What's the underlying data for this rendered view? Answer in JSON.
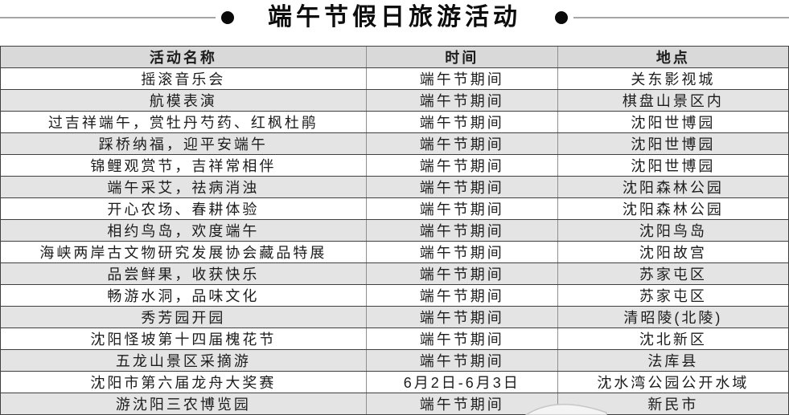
{
  "title": "端午节假日旅游活动",
  "decor": {
    "left_bullet": "",
    "right_bullet": ""
  },
  "colors": {
    "header_bg": "#d9d9d9",
    "alt_row_bg": "#e4e4e4",
    "border_dark": "#3f3f3f",
    "border_light": "#8f8f8f",
    "title_line": "#a6a6a6",
    "text": "#1c1c1c"
  },
  "table": {
    "columns": [
      "活动名称",
      "时间",
      "地点"
    ],
    "rows": [
      {
        "name": "摇滚音乐会",
        "time": "端午节期间",
        "place": "关东影视城"
      },
      {
        "name": "航模表演",
        "time": "端午节期间",
        "place": "棋盘山景区内"
      },
      {
        "name": "过吉祥端午，赏牡丹芍药、红枫杜鹃",
        "time": "端午节期间",
        "place": "沈阳世博园"
      },
      {
        "name": "踩桥纳福，迎平安端午",
        "time": "端午节期间",
        "place": "沈阳世博园"
      },
      {
        "name": "锦鲤观赏节，吉祥常相伴",
        "time": "端午节期间",
        "place": "沈阳世博园"
      },
      {
        "name": "端午采艾，祛病消浊",
        "time": "端午节期间",
        "place": "沈阳森林公园"
      },
      {
        "name": "开心农场、春耕体验",
        "time": "端午节期间",
        "place": "沈阳森林公园"
      },
      {
        "name": "相约鸟岛，欢度端午",
        "time": "端午节期间",
        "place": "沈阳鸟岛"
      },
      {
        "name": "海峡两岸古文物研究发展协会藏品特展",
        "time": "端午节期间",
        "place": "沈阳故宫"
      },
      {
        "name": "品尝鲜果，收获快乐",
        "time": "端午节期间",
        "place": "苏家屯区"
      },
      {
        "name": "畅游水洞，品味文化",
        "time": "端午节期间",
        "place": "苏家屯区"
      },
      {
        "name": "秀芳园开园",
        "time": "端午节期间",
        "place": "清昭陵(北陵)"
      },
      {
        "name": "沈阳怪坡第十四届槐花节",
        "time": "端午节期间",
        "place": "沈北新区"
      },
      {
        "name": "五龙山景区采摘游",
        "time": "端午节期间",
        "place": "法库县"
      },
      {
        "name": "沈阳市第六届龙舟大奖赛",
        "time": "6月2日-6月3日",
        "place": "沈水湾公园公开水域"
      },
      {
        "name": "游沈阳三农博览园",
        "time": "端午节期间",
        "place": "新民市"
      }
    ]
  }
}
